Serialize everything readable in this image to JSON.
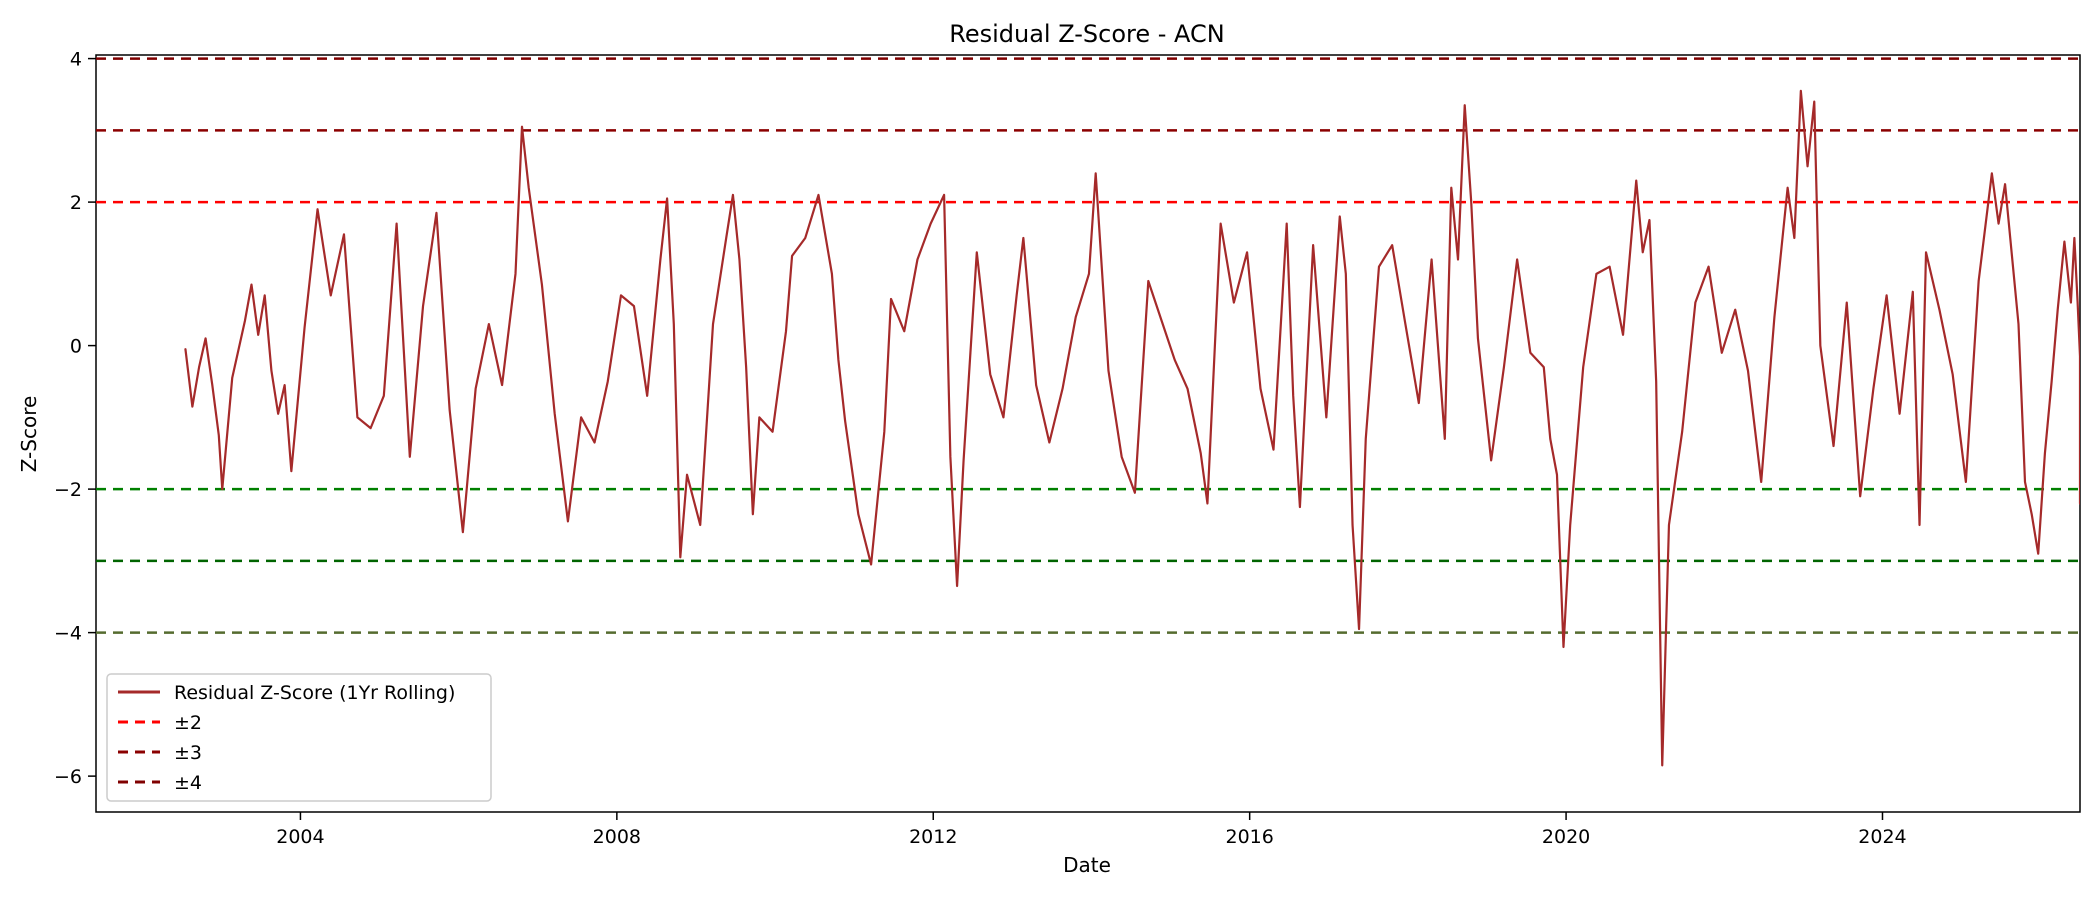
{
  "chart_data": {
    "type": "line",
    "title": "Residual Z-Score - ACN",
    "xlabel": "Date",
    "ylabel": "Z-Score",
    "xlim": [
      "2001-06-01",
      "2026-07-01"
    ],
    "ylim": [
      -6.5,
      4.05
    ],
    "x_ticks": [
      "2004",
      "2008",
      "2012",
      "2016",
      "2020",
      "2024"
    ],
    "y_ticks": [
      4,
      2,
      0,
      -2,
      -4,
      -6
    ],
    "y_tick_labels": [
      "4",
      "2",
      "0",
      "−2",
      "−4",
      "−6"
    ],
    "grid": false,
    "legend_position": "lower-left",
    "series": [
      {
        "name": "Residual Z-Score (1Yr Rolling)",
        "color": "#a52a2a",
        "points": [
          [
            "2002-07-19",
            -0.05
          ],
          [
            "2002-08-20",
            -0.85
          ],
          [
            "2002-09-20",
            -0.3
          ],
          [
            "2002-10-20",
            0.1
          ],
          [
            "2002-11-20",
            -0.55
          ],
          [
            "2002-12-20",
            -1.25
          ],
          [
            "2003-01-05",
            -2.0
          ],
          [
            "2003-02-20",
            -0.45
          ],
          [
            "2003-04-20",
            0.35
          ],
          [
            "2003-05-20",
            0.85
          ],
          [
            "2003-06-20",
            0.15
          ],
          [
            "2003-07-20",
            0.7
          ],
          [
            "2003-08-20",
            -0.35
          ],
          [
            "2003-09-20",
            -0.95
          ],
          [
            "2003-10-20",
            -0.55
          ],
          [
            "2003-11-20",
            -1.75
          ],
          [
            "2004-01-20",
            0.25
          ],
          [
            "2004-03-20",
            1.9
          ],
          [
            "2004-05-20",
            0.7
          ],
          [
            "2004-07-20",
            1.55
          ],
          [
            "2004-09-20",
            -1.0
          ],
          [
            "2004-11-20",
            -1.15
          ],
          [
            "2005-01-20",
            -0.7
          ],
          [
            "2005-03-20",
            1.7
          ],
          [
            "2005-05-20",
            -1.55
          ],
          [
            "2005-07-20",
            0.55
          ],
          [
            "2005-09-20",
            1.85
          ],
          [
            "2005-11-20",
            -0.9
          ],
          [
            "2006-01-20",
            -2.6
          ],
          [
            "2006-03-20",
            -0.6
          ],
          [
            "2006-05-20",
            0.3
          ],
          [
            "2006-07-20",
            -0.55
          ],
          [
            "2006-09-20",
            1.0
          ],
          [
            "2006-10-20",
            3.05
          ],
          [
            "2006-11-20",
            2.2
          ],
          [
            "2007-01-20",
            0.85
          ],
          [
            "2007-03-20",
            -0.95
          ],
          [
            "2007-05-20",
            -2.45
          ],
          [
            "2007-07-20",
            -1.0
          ],
          [
            "2007-09-20",
            -1.35
          ],
          [
            "2007-11-20",
            -0.5
          ],
          [
            "2008-01-20",
            0.7
          ],
          [
            "2008-03-20",
            0.55
          ],
          [
            "2008-05-20",
            -0.7
          ],
          [
            "2008-07-20",
            1.2
          ],
          [
            "2008-08-20",
            2.05
          ],
          [
            "2008-09-20",
            0.3
          ],
          [
            "2008-10-20",
            -2.95
          ],
          [
            "2008-11-20",
            -1.8
          ],
          [
            "2009-01-20",
            -2.5
          ],
          [
            "2009-03-20",
            0.3
          ],
          [
            "2009-05-20",
            1.5
          ],
          [
            "2009-06-20",
            2.1
          ],
          [
            "2009-07-20",
            1.2
          ],
          [
            "2009-08-20",
            -0.3
          ],
          [
            "2009-09-20",
            -2.35
          ],
          [
            "2009-10-20",
            -1.0
          ],
          [
            "2009-12-20",
            -1.2
          ],
          [
            "2010-02-20",
            0.2
          ],
          [
            "2010-03-20",
            1.25
          ],
          [
            "2010-05-20",
            1.5
          ],
          [
            "2010-07-20",
            2.1
          ],
          [
            "2010-09-20",
            1.0
          ],
          [
            "2010-10-20",
            -0.2
          ],
          [
            "2010-11-20",
            -1.05
          ],
          [
            "2011-01-20",
            -2.35
          ],
          [
            "2011-03-20",
            -3.05
          ],
          [
            "2011-05-20",
            -1.2
          ],
          [
            "2011-06-20",
            0.65
          ],
          [
            "2011-08-20",
            0.2
          ],
          [
            "2011-10-20",
            1.2
          ],
          [
            "2011-12-20",
            1.7
          ],
          [
            "2012-02-20",
            2.1
          ],
          [
            "2012-03-20",
            -1.55
          ],
          [
            "2012-04-20",
            -3.35
          ],
          [
            "2012-05-20",
            -1.6
          ],
          [
            "2012-07-20",
            1.3
          ],
          [
            "2012-09-20",
            -0.4
          ],
          [
            "2012-11-20",
            -1.0
          ],
          [
            "2013-01-20",
            0.7
          ],
          [
            "2013-02-20",
            1.5
          ],
          [
            "2013-04-20",
            -0.55
          ],
          [
            "2013-06-20",
            -1.35
          ],
          [
            "2013-08-20",
            -0.6
          ],
          [
            "2013-10-20",
            0.4
          ],
          [
            "2013-12-20",
            1.0
          ],
          [
            "2014-01-20",
            2.4
          ],
          [
            "2014-03-20",
            -0.35
          ],
          [
            "2014-05-20",
            -1.55
          ],
          [
            "2014-07-20",
            -2.05
          ],
          [
            "2014-09-20",
            0.9
          ],
          [
            "2014-11-20",
            0.35
          ],
          [
            "2015-01-20",
            -0.2
          ],
          [
            "2015-03-20",
            -0.6
          ],
          [
            "2015-05-20",
            -1.5
          ],
          [
            "2015-06-20",
            -2.2
          ],
          [
            "2015-08-20",
            1.7
          ],
          [
            "2015-10-20",
            0.6
          ],
          [
            "2015-12-20",
            1.3
          ],
          [
            "2016-02-20",
            -0.6
          ],
          [
            "2016-04-20",
            -1.45
          ],
          [
            "2016-06-20",
            1.7
          ],
          [
            "2016-07-20",
            -0.7
          ],
          [
            "2016-08-20",
            -2.25
          ],
          [
            "2016-10-20",
            1.4
          ],
          [
            "2016-12-20",
            -1.0
          ],
          [
            "2017-02-20",
            1.8
          ],
          [
            "2017-03-20",
            1.0
          ],
          [
            "2017-04-20",
            -2.5
          ],
          [
            "2017-05-20",
            -3.95
          ],
          [
            "2017-06-20",
            -1.3
          ],
          [
            "2017-08-20",
            1.1
          ],
          [
            "2017-10-20",
            1.4
          ],
          [
            "2017-12-20",
            0.3
          ],
          [
            "2018-02-20",
            -0.8
          ],
          [
            "2018-04-20",
            1.2
          ],
          [
            "2018-06-20",
            -1.3
          ],
          [
            "2018-07-20",
            2.2
          ],
          [
            "2018-08-20",
            1.2
          ],
          [
            "2018-09-20",
            3.35
          ],
          [
            "2018-10-20",
            2.0
          ],
          [
            "2018-11-20",
            0.1
          ],
          [
            "2019-01-20",
            -1.6
          ],
          [
            "2019-03-20",
            -0.3
          ],
          [
            "2019-05-20",
            1.2
          ],
          [
            "2019-07-20",
            -0.1
          ],
          [
            "2019-09-20",
            -0.3
          ],
          [
            "2019-10-20",
            -1.3
          ],
          [
            "2019-11-20",
            -1.8
          ],
          [
            "2019-12-20",
            -4.2
          ],
          [
            "2020-01-20",
            -2.5
          ],
          [
            "2020-03-20",
            -0.3
          ],
          [
            "2020-05-20",
            1.0
          ],
          [
            "2020-07-20",
            1.1
          ],
          [
            "2020-09-20",
            0.15
          ],
          [
            "2020-11-20",
            2.3
          ],
          [
            "2020-12-20",
            1.3
          ],
          [
            "2021-01-20",
            1.75
          ],
          [
            "2021-02-20",
            -0.5
          ],
          [
            "2021-03-20",
            -5.85
          ],
          [
            "2021-04-20",
            -2.5
          ],
          [
            "2021-06-20",
            -1.2
          ],
          [
            "2021-08-20",
            0.6
          ],
          [
            "2021-10-20",
            1.1
          ],
          [
            "2021-12-20",
            -0.1
          ],
          [
            "2022-02-20",
            0.5
          ],
          [
            "2022-04-20",
            -0.35
          ],
          [
            "2022-06-20",
            -1.9
          ],
          [
            "2022-08-20",
            0.4
          ],
          [
            "2022-10-20",
            2.2
          ],
          [
            "2022-11-20",
            1.5
          ],
          [
            "2022-12-20",
            3.55
          ],
          [
            "2023-01-20",
            2.5
          ],
          [
            "2023-02-20",
            3.4
          ],
          [
            "2023-03-20",
            0.0
          ],
          [
            "2023-05-20",
            -1.4
          ],
          [
            "2023-07-20",
            0.6
          ],
          [
            "2023-09-20",
            -2.1
          ],
          [
            "2023-11-20",
            -0.6
          ],
          [
            "2024-01-20",
            0.7
          ],
          [
            "2024-03-20",
            -0.95
          ],
          [
            "2024-05-20",
            0.75
          ],
          [
            "2024-06-20",
            -2.5
          ],
          [
            "2024-07-20",
            1.3
          ],
          [
            "2024-09-20",
            0.5
          ],
          [
            "2024-11-20",
            -0.4
          ],
          [
            "2025-01-20",
            -1.9
          ],
          [
            "2025-03-20",
            0.9
          ],
          [
            "2025-05-20",
            2.4
          ],
          [
            "2025-06-20",
            1.7
          ],
          [
            "2025-07-20",
            2.25
          ],
          [
            "2025-09-20",
            0.3
          ],
          [
            "2025-10-20",
            -1.9
          ],
          [
            "2025-11-20",
            -2.35
          ],
          [
            "2025-12-20",
            -2.9
          ],
          [
            "2026-01-20",
            -1.5
          ],
          [
            "2026-02-20",
            -0.5
          ],
          [
            "2026-03-20",
            0.5
          ],
          [
            "2026-04-20",
            1.45
          ],
          [
            "2026-05-20",
            0.6
          ],
          [
            "2026-06-05",
            1.5
          ],
          [
            "2026-06-20",
            0.6
          ],
          [
            "2026-07-01",
            -0.15
          ],
          [
            "2026-07-01",
            -1.7
          ],
          [
            "2026-07-01",
            -2.2
          ],
          [
            "2026-07-01",
            -1.25
          ],
          [
            "2026-07-01",
            -0.6
          ]
        ]
      }
    ],
    "reference_lines": [
      {
        "name": "±2",
        "color": "#ff0000",
        "values": [
          2,
          -2
        ],
        "style": "dashed"
      },
      {
        "name": "±3",
        "color": "#8b0000",
        "values": [
          3,
          -3
        ],
        "style": "dashed"
      },
      {
        "name": "±4",
        "color": "#800000",
        "values": [
          4,
          -4
        ],
        "style": "dashed"
      }
    ],
    "negative_reference_colors": {
      "minus2": "#008000",
      "minus3": "#006400",
      "minus4": "#556b2f"
    },
    "legend_entries": [
      {
        "label": "Residual Z-Score (1Yr Rolling)",
        "color": "#a52a2a",
        "style": "solid"
      },
      {
        "label": "±2",
        "color": "#ff0000",
        "style": "dashed"
      },
      {
        "label": "±3",
        "color": "#8b0000",
        "style": "dashed"
      },
      {
        "label": "±4",
        "color": "#800000",
        "style": "dashed"
      }
    ]
  }
}
